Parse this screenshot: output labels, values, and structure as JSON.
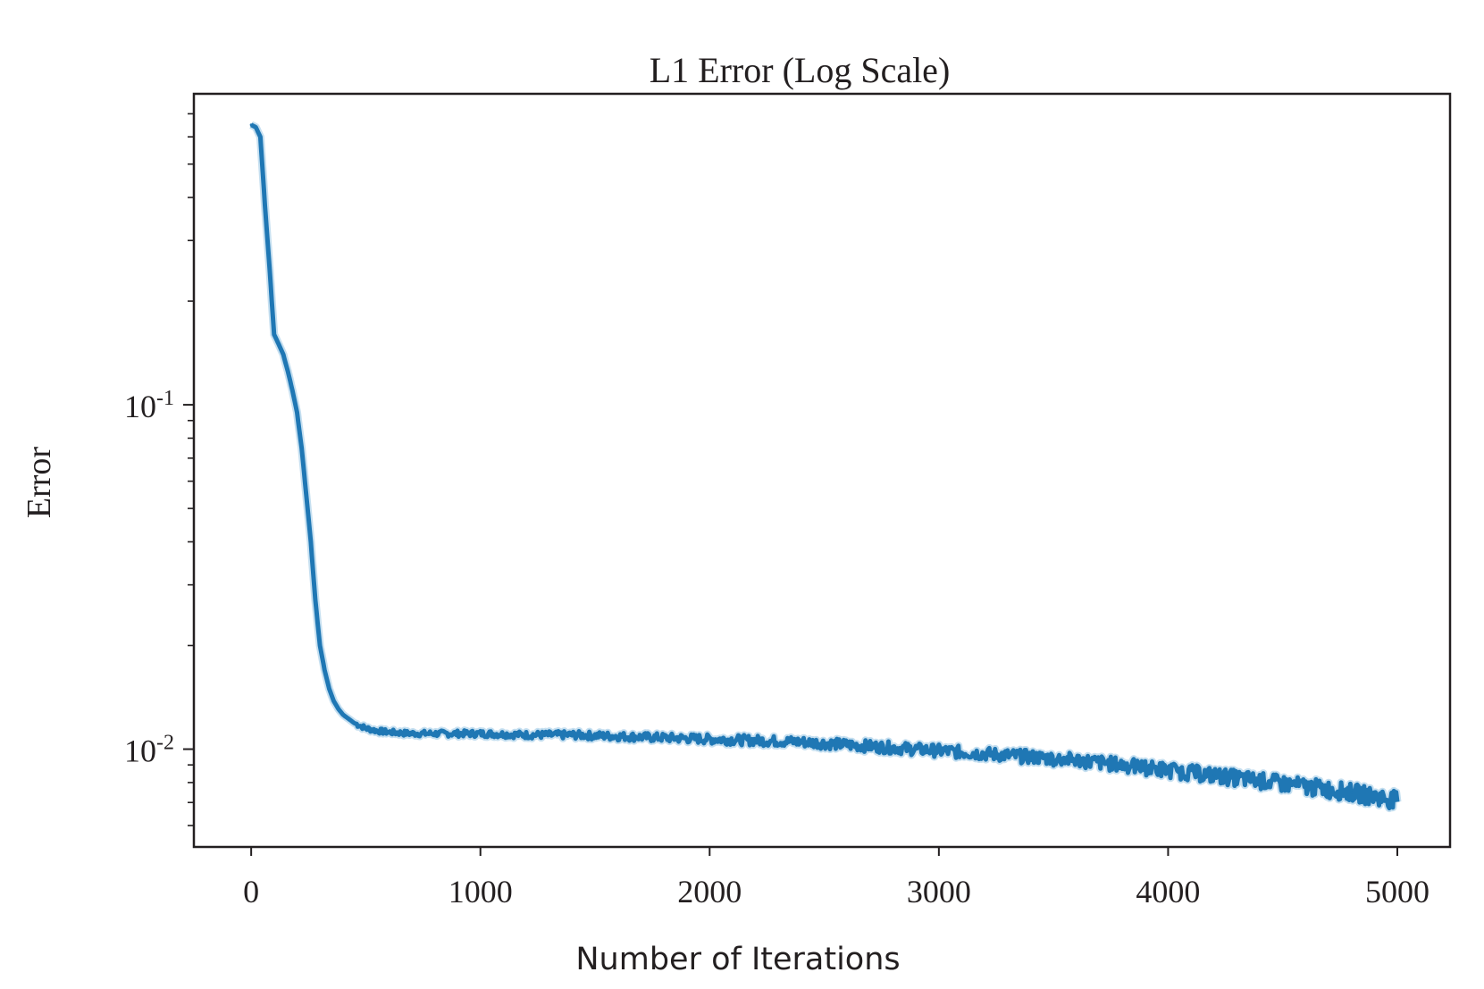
{
  "chart_data": {
    "type": "line",
    "title": "L1 Error (Log Scale)",
    "xlabel": "Number of Iterations",
    "ylabel": "Error",
    "xlim": [
      -250,
      5230
    ],
    "ylim": [
      0.0052,
      0.8
    ],
    "yscale": "log",
    "x_ticks": [
      0,
      1000,
      2000,
      3000,
      4000,
      5000
    ],
    "y_ticks": [
      {
        "value": 0.1,
        "base": "10",
        "exp": "-1"
      },
      {
        "value": 0.01,
        "base": "10",
        "exp": "-2"
      }
    ],
    "grid": false,
    "series": [
      {
        "name": "L1 Error",
        "color": "#1f77b4",
        "x": [
          0,
          20,
          40,
          60,
          80,
          100,
          120,
          140,
          160,
          180,
          200,
          220,
          240,
          260,
          280,
          300,
          320,
          340,
          360,
          380,
          400,
          450,
          500,
          550,
          600,
          700,
          800,
          900,
          1000,
          1200,
          1400,
          1600,
          1800,
          2000,
          2200,
          2400,
          2600,
          2800,
          3000,
          3200,
          3400,
          3600,
          3800,
          4000,
          4200,
          4400,
          4600,
          4800,
          5000
        ],
        "y": [
          0.65,
          0.64,
          0.6,
          0.38,
          0.25,
          0.16,
          0.15,
          0.14,
          0.125,
          0.11,
          0.095,
          0.075,
          0.055,
          0.04,
          0.027,
          0.02,
          0.017,
          0.015,
          0.0138,
          0.0131,
          0.0126,
          0.0119,
          0.0115,
          0.0113,
          0.0112,
          0.0111,
          0.0111,
          0.0111,
          0.0111,
          0.011,
          0.011,
          0.0109,
          0.0108,
          0.0107,
          0.0106,
          0.0105,
          0.0103,
          0.0101,
          0.0099,
          0.0097,
          0.0095,
          0.0093,
          0.009,
          0.0087,
          0.0084,
          0.0081,
          0.0078,
          0.0075,
          0.0071
        ]
      }
    ]
  }
}
